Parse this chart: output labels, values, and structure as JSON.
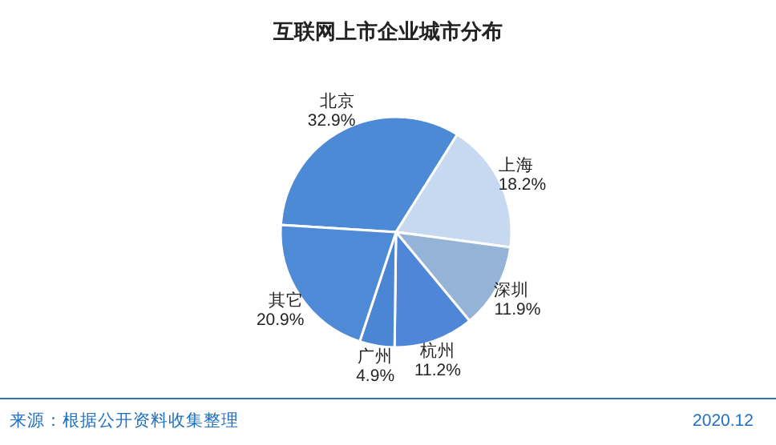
{
  "chart_data": {
    "type": "pie",
    "title": "互联网上市企业城市分布",
    "categories": [
      "北京",
      "上海",
      "深圳",
      "杭州",
      "广州",
      "其它"
    ],
    "values": [
      32.9,
      18.2,
      11.9,
      11.2,
      4.9,
      20.9
    ],
    "colors": [
      "#4d8ad6",
      "#c6d9f1",
      "#95b3d7",
      "#4f86d8",
      "#4a86d4",
      "#4f8ad6"
    ],
    "value_labels": [
      "32.9%",
      "18.2%",
      "11.9%",
      "11.2%",
      "4.9%",
      "20.9%"
    ],
    "annotations": [
      "来源：根据公开资料收集整理",
      "2020.12"
    ]
  }
}
